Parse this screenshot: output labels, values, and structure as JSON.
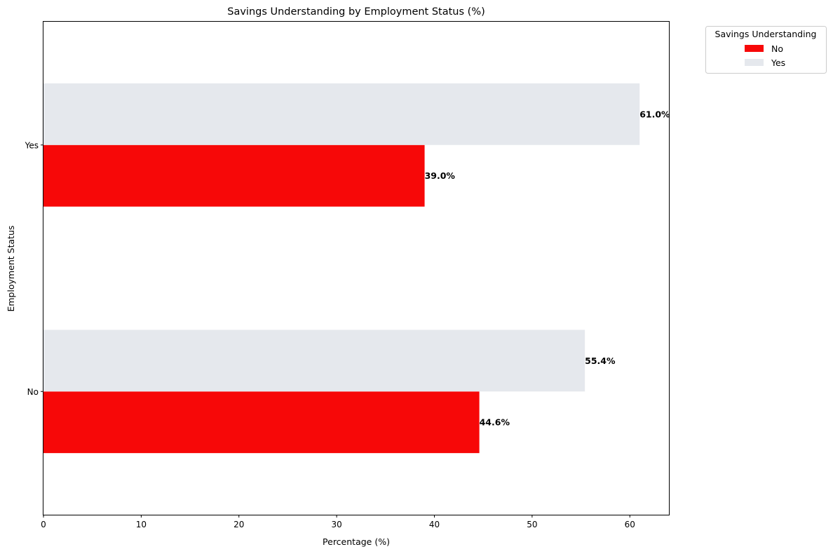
{
  "chart_data": {
    "type": "bar",
    "orientation": "horizontal",
    "title": "Savings Understanding by Employment Status (%)",
    "xlabel": "Percentage (%)",
    "ylabel": "Employment Status",
    "categories": [
      "No",
      "Yes"
    ],
    "series": [
      {
        "name": "No",
        "values": [
          44.6,
          39.0
        ],
        "labels": [
          "44.6%",
          "39.0%"
        ],
        "color": "#f70808"
      },
      {
        "name": "Yes",
        "values": [
          55.4,
          61.0
        ],
        "labels": [
          "55.4%",
          "61.0%"
        ],
        "color": "#e5e8ed"
      }
    ],
    "xlim": [
      0,
      64
    ],
    "xticks": [
      0,
      10,
      20,
      30,
      40,
      50,
      60
    ],
    "grid": false,
    "legend": {
      "title": "Savings Understanding",
      "placement": "outside-top-right"
    }
  }
}
